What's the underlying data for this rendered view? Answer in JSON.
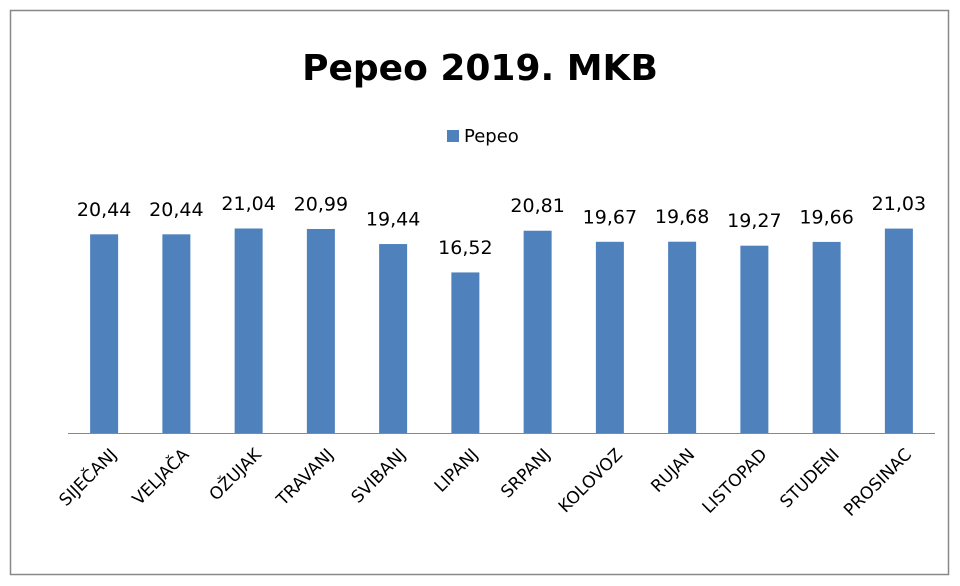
{
  "chart_data": {
    "type": "bar",
    "title": "Pepeo 2019. MKB",
    "categories": [
      "SIJEČANJ",
      "VELJAČA",
      "OŽUJAK",
      "TRAVANJ",
      "SVIBANJ",
      "LIPANJ",
      "SRPANJ",
      "KOLOVOZ",
      "RUJAN",
      "LISTOPAD",
      "STUDENI",
      "PROSINAC"
    ],
    "series": [
      {
        "name": "Pepeo",
        "color": "#4f81bd",
        "values": [
          20.44,
          20.44,
          21.04,
          20.99,
          19.44,
          16.52,
          20.81,
          19.67,
          19.68,
          19.27,
          19.66,
          21.03
        ],
        "value_labels": [
          "20,44",
          "20,44",
          "21,04",
          "20,99",
          "19,44",
          "16,52",
          "20,81",
          "19,67",
          "19,68",
          "19,27",
          "19,66",
          "21,03"
        ]
      }
    ],
    "ylim": [
      0,
      25
    ],
    "legend": "top"
  }
}
